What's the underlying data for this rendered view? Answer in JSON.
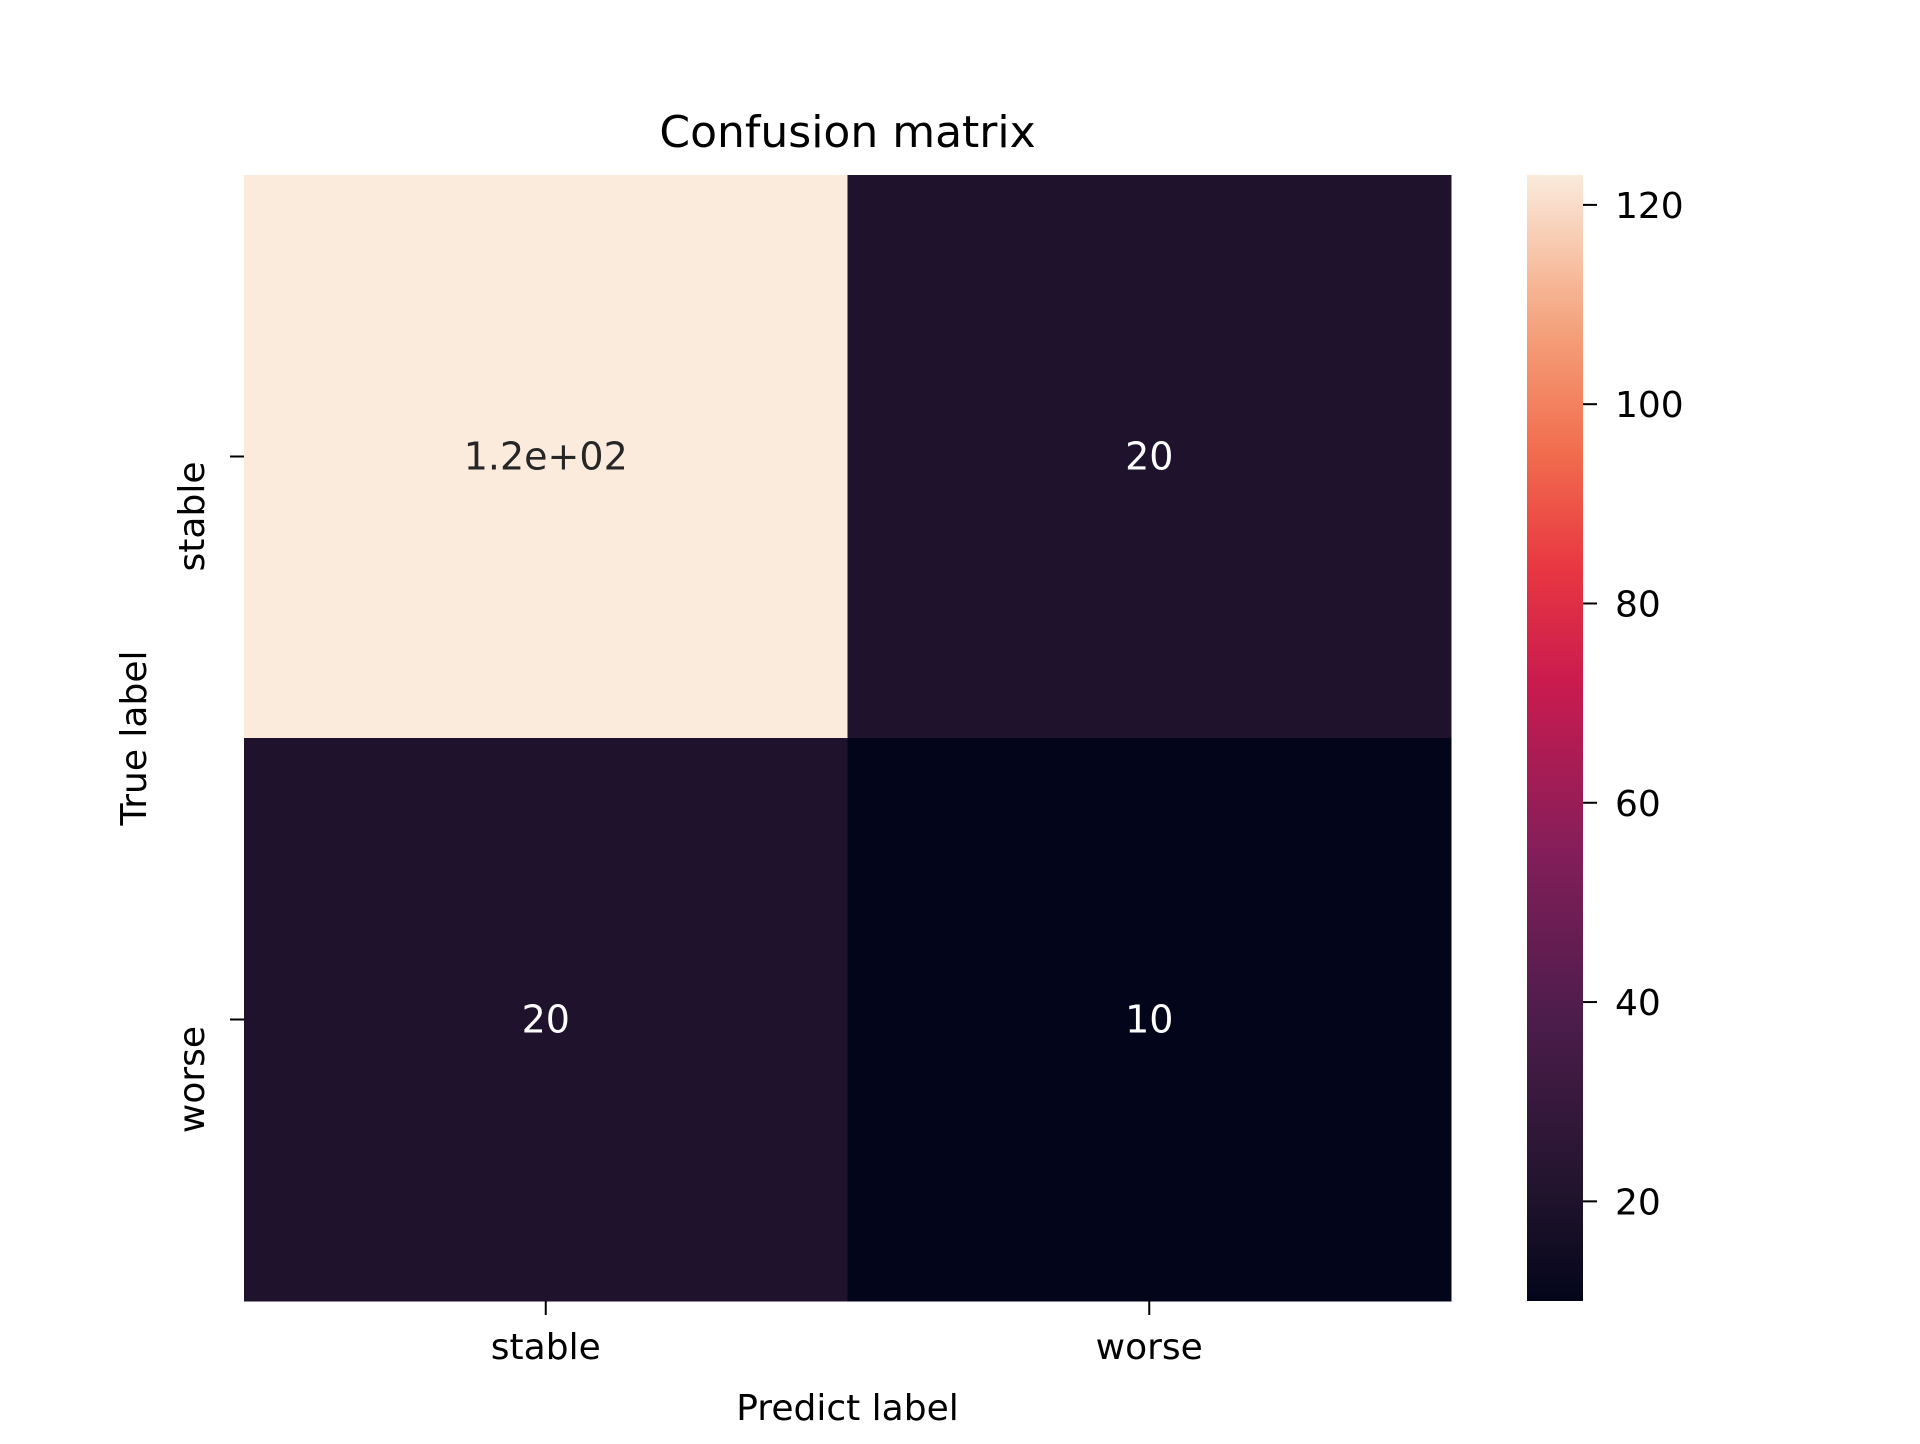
{
  "chart_data": {
    "type": "heatmap",
    "title": "Confusion matrix",
    "xlabel": "Predict label",
    "ylabel": "True label",
    "x_categories": [
      "stable",
      "worse"
    ],
    "y_categories": [
      "stable",
      "worse"
    ],
    "values": [
      [
        123,
        20
      ],
      [
        20,
        10
      ]
    ],
    "annotations": [
      [
        "1.2e+02",
        "20"
      ],
      [
        "20",
        "10"
      ]
    ],
    "colorbar": {
      "range": [
        10,
        123
      ],
      "ticks": [
        20,
        40,
        60,
        80,
        100,
        120
      ],
      "colormap": "rocket"
    },
    "grid": false
  }
}
